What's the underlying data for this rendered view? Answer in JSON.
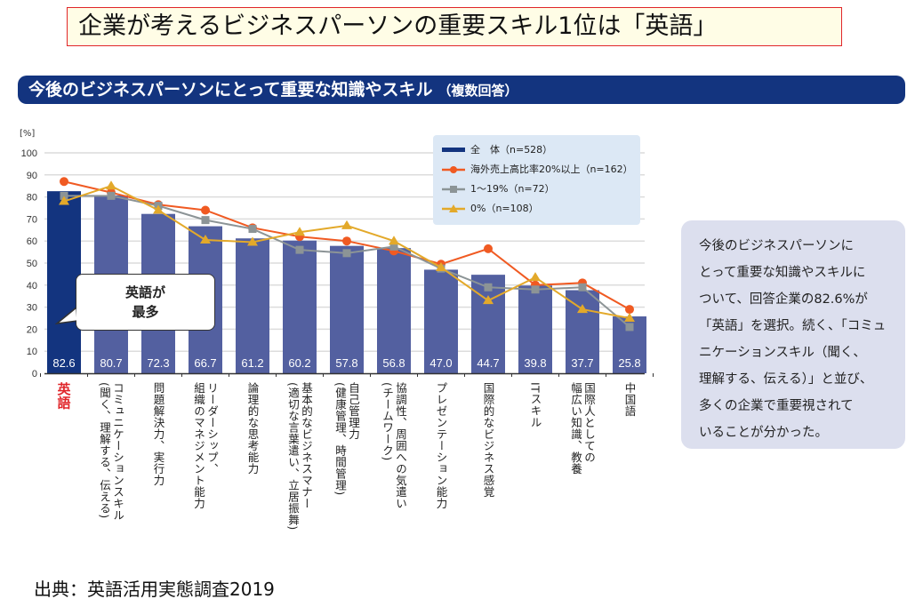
{
  "page_title": "企業が考えるビジネスパーソンの重要スキル1位は「英語」",
  "banner": {
    "title": "今後のビジネスパーソンにとって重要な知識やスキル",
    "subtitle": "（複数回答）"
  },
  "callout": {
    "line1": "英語が",
    "line2": "最多"
  },
  "side_note": {
    "lines": [
      "今後のビジネスパーソンに",
      "とって重要な知識やスキルに",
      "ついて、回答企業の82.6%が",
      "「英語」を選択。続く、「コミュ",
      "ニケーションスキル（聞く、",
      "理解する、伝える）」と並び、",
      "多くの企業で重要視されて",
      "いることが分かった。"
    ]
  },
  "source": "出典：英語活用実態調査2019",
  "chart_data": {
    "type": "bar",
    "title": "今後のビジネスパーソンにとって重要な知識やスキル（複数回答）",
    "ylabel": "[%]",
    "ylim": [
      0,
      100
    ],
    "yticks": [
      0,
      10,
      20,
      30,
      40,
      50,
      60,
      70,
      80,
      90,
      100
    ],
    "grid": true,
    "legend_position": "top-right",
    "highlight_color": "#e0262a",
    "categories": [
      "英語",
      "コミュニケーションスキル\n(聞く、理解する、伝える)",
      "問題解決力、実行力",
      "リーダーシップ、\n組織のマネジメント能力",
      "論理的な思考能力",
      "基本的なビジネスマナー\n(適切な言葉遣い、立居振舞)",
      "自己管理力\n(健康管理、時間管理)",
      "協調性、周囲への気遣い\n(チームワーク)",
      "プレゼンテーション能力",
      "国際的なビジネス感覚",
      "ITスキル",
      "国際人としての\n幅広い知識、教養",
      "中国語"
    ],
    "series": [
      {
        "name": "全　体（n=528）",
        "kind": "bar",
        "color": "#5360a0",
        "highlight_bar_color": "#13347f",
        "values": [
          82.6,
          80.7,
          72.3,
          66.7,
          61.2,
          60.2,
          57.8,
          56.8,
          47.0,
          44.7,
          39.8,
          37.7,
          25.8
        ]
      },
      {
        "name": "海外売上高比率20%以上（n=162）",
        "kind": "line",
        "marker": "circle",
        "color": "#f05a22",
        "values": [
          87,
          82,
          76.5,
          74,
          66,
          62,
          60,
          55.5,
          49.5,
          56.5,
          40,
          41,
          29
        ]
      },
      {
        "name": "1～19%（n=72）",
        "kind": "line",
        "marker": "square",
        "color": "#8c9496",
        "values": [
          80.5,
          80.5,
          76,
          69.5,
          65.5,
          56,
          54.5,
          57.5,
          47.5,
          39,
          38,
          39,
          21
        ]
      },
      {
        "name": "0%（n=108）",
        "kind": "line",
        "marker": "triangle",
        "color": "#e3a92a",
        "values": [
          78,
          85,
          74,
          60.5,
          59.5,
          64,
          67,
          60,
          48,
          33,
          43.5,
          29,
          25
        ]
      }
    ]
  }
}
